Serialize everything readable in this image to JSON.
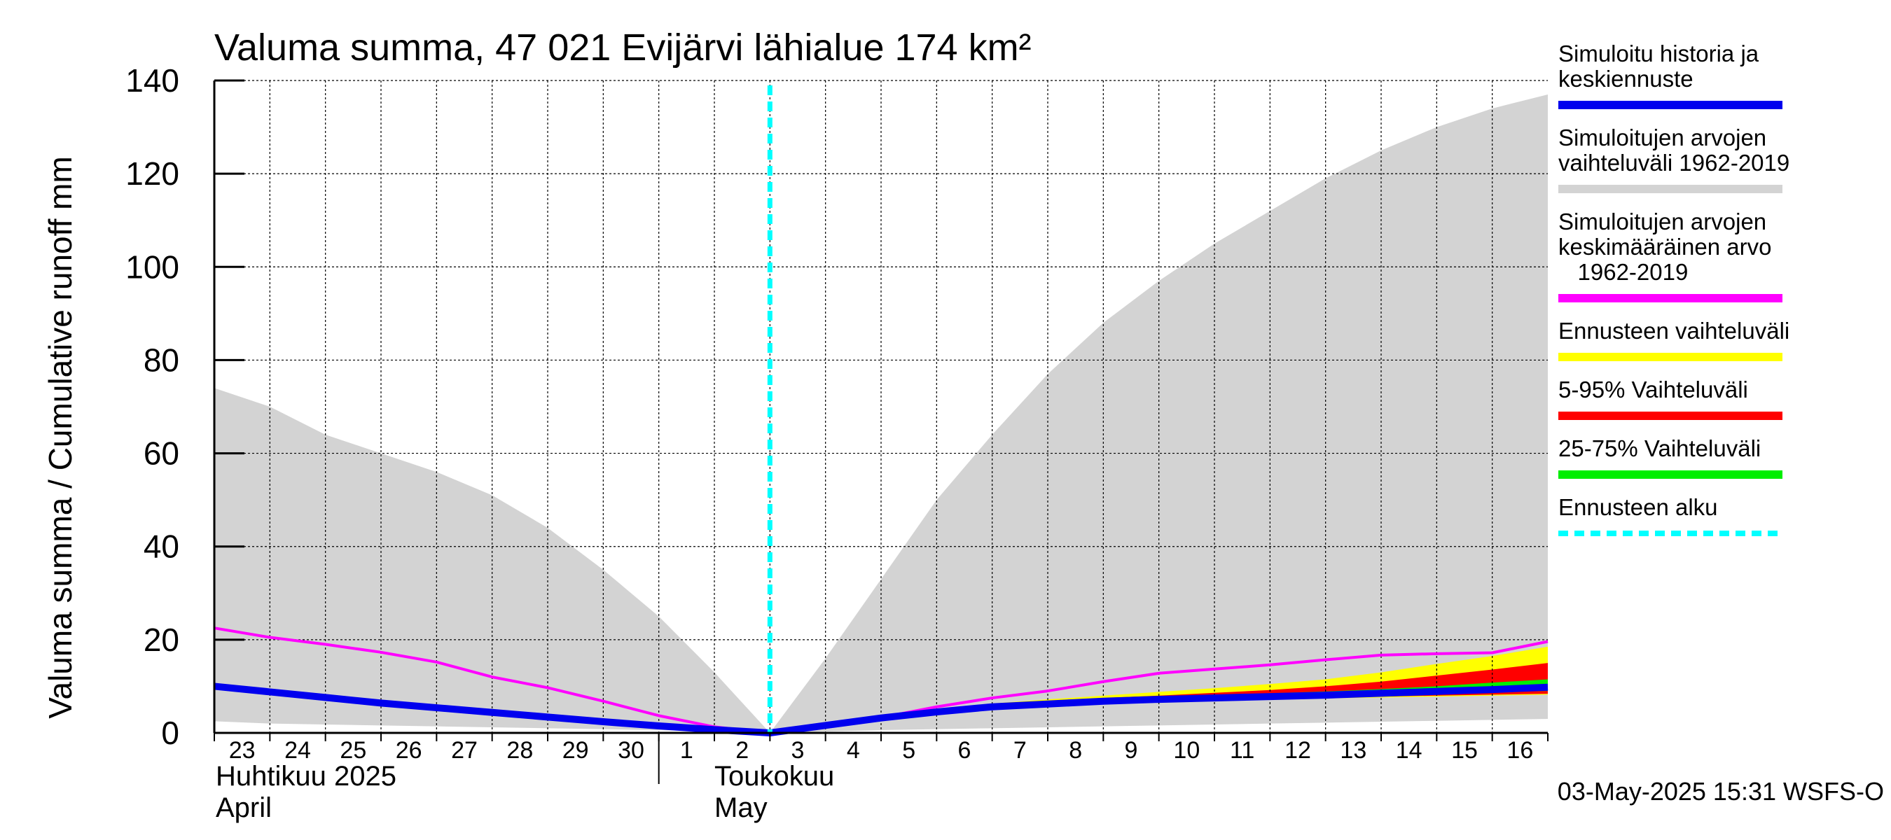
{
  "chart_data": {
    "type": "area",
    "title": "Valuma summa, 47 021 Evijärvi lähialue 174 km²",
    "ylabel": "Valuma summa / Cumulative runoff    mm",
    "ylim": [
      0,
      140
    ],
    "y_ticks": [
      "0",
      "20",
      "40",
      "60",
      "80",
      "100",
      "120",
      "140"
    ],
    "x_tick_labels": [
      "23",
      "24",
      "25",
      "26",
      "27",
      "28",
      "29",
      "30",
      "1",
      "2",
      "3",
      "4",
      "5",
      "6",
      "7",
      "8",
      "9",
      "10",
      "11",
      "12",
      "13",
      "14",
      "15",
      "16"
    ],
    "month_labels": [
      {
        "fi": "Huhtikuu  2025",
        "en": "April"
      },
      {
        "fi": "Toukokuu",
        "en": "May"
      }
    ],
    "grid": true,
    "legend_position": "right",
    "forecast_start": "2025-05-03",
    "timestamp": "03-May-2025 15:31 WSFS-O",
    "x_dates": [
      "2025-04-23",
      "2025-04-24",
      "2025-04-25",
      "2025-04-26",
      "2025-04-27",
      "2025-04-28",
      "2025-04-29",
      "2025-04-30",
      "2025-05-01",
      "2025-05-02",
      "2025-05-03",
      "2025-05-04",
      "2025-05-05",
      "2025-05-06",
      "2025-05-07",
      "2025-05-08",
      "2025-05-09",
      "2025-05-10",
      "2025-05-11",
      "2025-05-12",
      "2025-05-13",
      "2025-05-14",
      "2025-05-15",
      "2025-05-16",
      "2025-05-17"
    ],
    "series": [
      {
        "name": "Simuloitujen arvojen vaihteluväli 1962-2019",
        "kind": "band",
        "color": "#d3d3d3",
        "lower": [
          2.5,
          2,
          1.8,
          1.6,
          1.4,
          1.2,
          1,
          0.8,
          0.6,
          0.3,
          0,
          0.3,
          0.6,
          0.8,
          1,
          1.2,
          1.4,
          1.6,
          1.8,
          2,
          2.2,
          2.4,
          2.6,
          2.8,
          3
        ],
        "upper": [
          74,
          70,
          64,
          60,
          56,
          51,
          44,
          35,
          25,
          13,
          0,
          16,
          33,
          50,
          64,
          77,
          88,
          97,
          105,
          112,
          119,
          125,
          130,
          134,
          137
        ]
      },
      {
        "name": "Ennusteen vaihteluväli",
        "kind": "band",
        "color": "#ffff00",
        "x_start": "2025-05-03",
        "lower": [
          0,
          1.5,
          3,
          4.2,
          5.2,
          5.7,
          6.2,
          6.6,
          7,
          7.2,
          7.4,
          7.6,
          7.8,
          8,
          8.2
        ],
        "upper": [
          0,
          1.8,
          3.5,
          5,
          6.3,
          7.2,
          8,
          8.8,
          9.6,
          10.5,
          11.5,
          13,
          14.8,
          16.5,
          18.5
        ]
      },
      {
        "name": "5-95% Vaihteluväli",
        "kind": "band",
        "color": "#ff0000",
        "x_start": "2025-05-03",
        "lower": [
          0,
          1.6,
          3.1,
          4.4,
          5.4,
          6,
          6.5,
          6.9,
          7.2,
          7.4,
          7.6,
          7.8,
          8,
          8.2,
          8.4
        ],
        "upper": [
          0,
          1.7,
          3.3,
          4.8,
          6,
          6.8,
          7.5,
          8,
          8.6,
          9.2,
          10,
          11,
          12.3,
          13.6,
          15
        ]
      },
      {
        "name": "25-75% Vaihteluväli",
        "kind": "band",
        "color": "#00ee00",
        "x_start": "2025-05-03",
        "lower": [
          0,
          1.6,
          3.2,
          4.5,
          5.6,
          6.3,
          6.8,
          7.2,
          7.5,
          7.8,
          8,
          8.2,
          8.5,
          8.8,
          9
        ],
        "upper": [
          0,
          1.7,
          3.3,
          4.6,
          5.8,
          6.6,
          7.2,
          7.7,
          8.1,
          8.5,
          8.9,
          9.4,
          10,
          10.8,
          11.5
        ]
      },
      {
        "name": "Simuloitujen arvojen keskimääräinen arvo 1962-2019",
        "kind": "line",
        "color": "#ff00ff",
        "values": [
          22.5,
          20.5,
          19,
          17.3,
          15.2,
          12,
          9.7,
          6.8,
          3.7,
          1.3,
          0,
          1.8,
          3.3,
          5.6,
          7.5,
          9,
          11,
          12.8,
          13.7,
          14.6,
          15.7,
          16.7,
          17,
          17.2,
          19.6
        ]
      },
      {
        "name": "Simuloitu historia ja keskiennuste",
        "kind": "line",
        "color": "#0000ee",
        "values": [
          10,
          8.8,
          7.6,
          6.4,
          5.4,
          4.4,
          3.4,
          2.4,
          1.5,
          0.7,
          0,
          1.6,
          3.2,
          4.5,
          5.6,
          6.2,
          6.8,
          7.2,
          7.5,
          7.8,
          8.1,
          8.5,
          8.9,
          9.3,
          9.8
        ]
      }
    ]
  },
  "legend": {
    "items": [
      {
        "lines": [
          "Simuloitu historia ja",
          "keskiennuste"
        ],
        "color": "#0000ee",
        "style": "solid"
      },
      {
        "lines": [
          "Simuloitujen arvojen",
          "vaihteluväli 1962-2019"
        ],
        "color": "#d3d3d3",
        "style": "solid"
      },
      {
        "lines": [
          "Simuloitujen arvojen",
          "keskimääräinen arvo",
          "   1962-2019"
        ],
        "color": "#ff00ff",
        "style": "solid"
      },
      {
        "lines": [
          "Ennusteen vaihteluväli"
        ],
        "color": "#ffff00",
        "style": "solid"
      },
      {
        "lines": [
          "5-95% Vaihteluväli"
        ],
        "color": "#ff0000",
        "style": "solid"
      },
      {
        "lines": [
          "25-75% Vaihteluväli"
        ],
        "color": "#00ee00",
        "style": "solid"
      },
      {
        "lines": [
          "Ennusteen alku"
        ],
        "color": "#00ffff",
        "style": "dashed"
      }
    ]
  }
}
